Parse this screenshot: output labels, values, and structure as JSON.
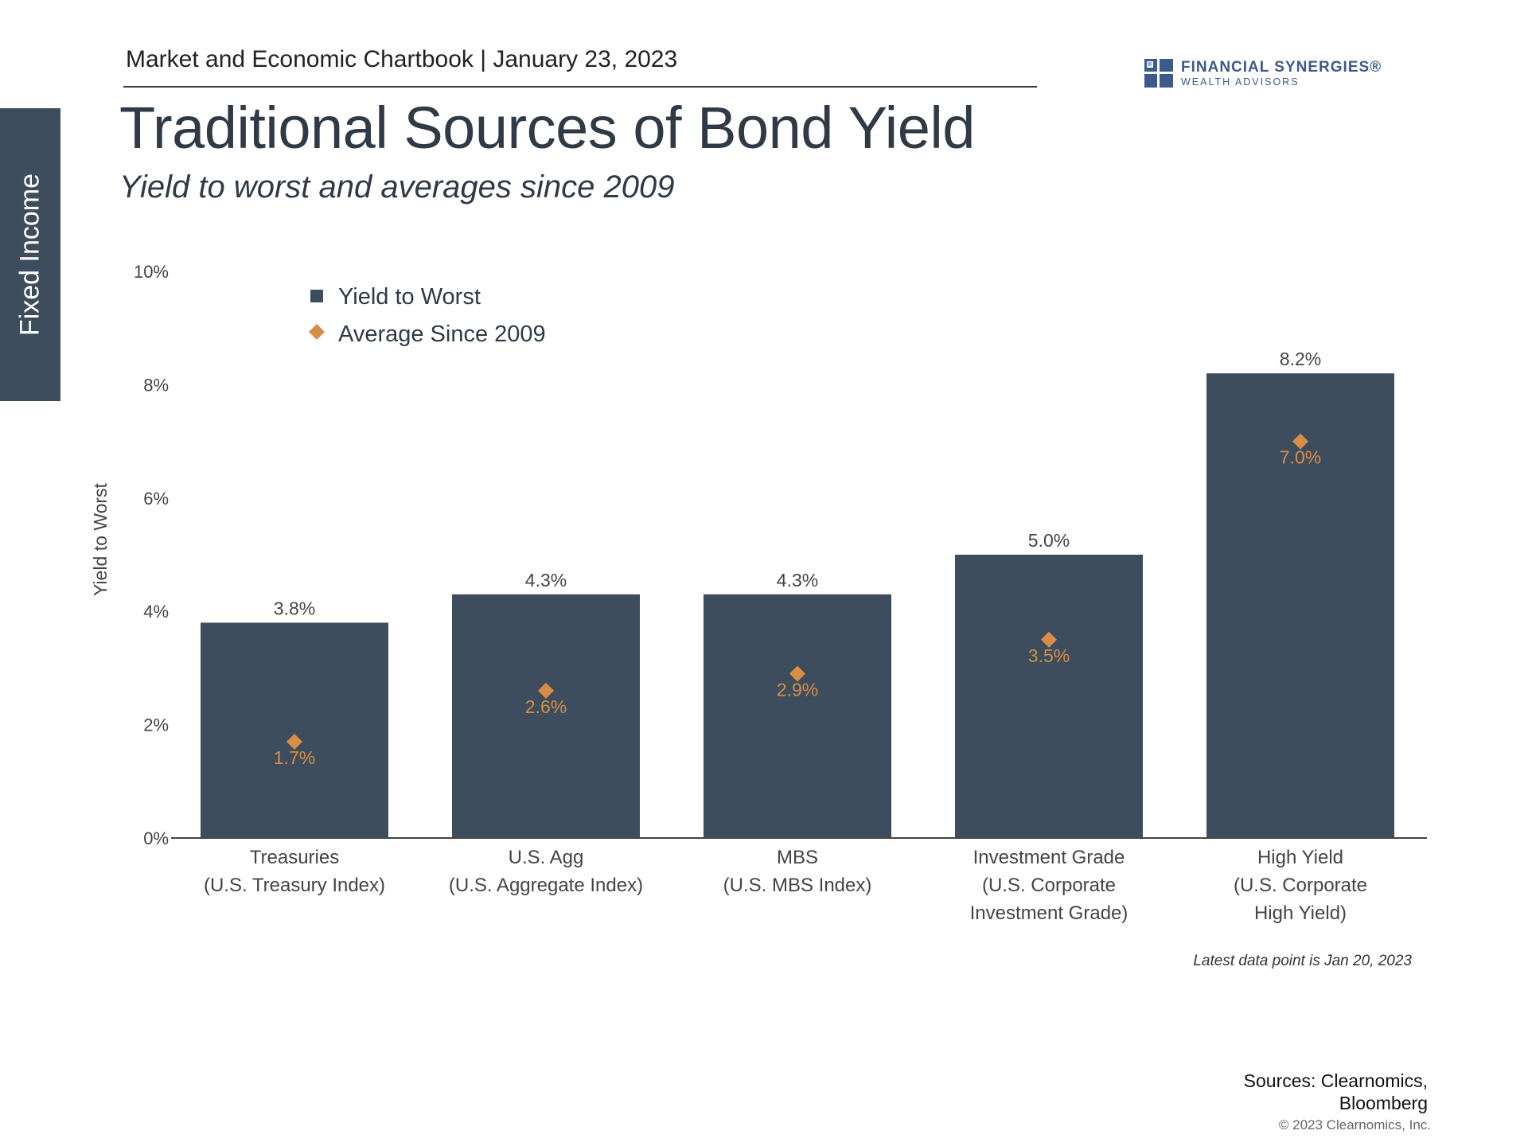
{
  "side_tab": {
    "label": "Fixed Income"
  },
  "header": {
    "text": "Market and Economic Chartbook | January 23, 2023"
  },
  "logo": {
    "name": "FINANCIAL SYNERGIES®",
    "sub": "WEALTH ADVISORS",
    "colors": {
      "blue": "#3d5a8c",
      "light": "#9bb0d0"
    }
  },
  "title": "Traditional Sources of Bond Yield",
  "subtitle": "Yield to worst and averages since 2009",
  "chart_data": {
    "type": "bar",
    "ylabel": "Yield to Worst",
    "ylim": [
      0,
      10
    ],
    "yticks": [
      0,
      2,
      4,
      6,
      8,
      10
    ],
    "ytick_labels": [
      "0%",
      "2%",
      "4%",
      "6%",
      "8%",
      "10%"
    ],
    "categories": [
      [
        "Treasuries",
        "(U.S. Treasury Index)"
      ],
      [
        "U.S. Agg",
        "(U.S. Aggregate Index)"
      ],
      [
        "MBS",
        "(U.S. MBS Index)"
      ],
      [
        "Investment Grade",
        "(U.S. Corporate",
        "Investment Grade)"
      ],
      [
        "High Yield",
        "(U.S. Corporate",
        "High Yield)"
      ]
    ],
    "series": [
      {
        "name": "Yield to Worst",
        "kind": "bar",
        "color": "#3d4d5e",
        "values": [
          3.8,
          4.3,
          4.3,
          5.0,
          8.2
        ],
        "labels": [
          "3.8%",
          "4.3%",
          "4.3%",
          "5.0%",
          "8.2%"
        ]
      },
      {
        "name": "Average Since 2009",
        "kind": "marker",
        "color": "#d98d45",
        "values": [
          1.7,
          2.6,
          2.9,
          3.5,
          7.0
        ],
        "labels": [
          "1.7%",
          "2.6%",
          "2.9%",
          "3.5%",
          "7.0%"
        ]
      }
    ],
    "legend": {
      "position": "top-left"
    }
  },
  "note": "Latest data point is Jan 20, 2023",
  "sources": [
    "Sources: Clearnomics,",
    "Bloomberg"
  ],
  "copyright": "© 2023 Clearnomics, Inc."
}
